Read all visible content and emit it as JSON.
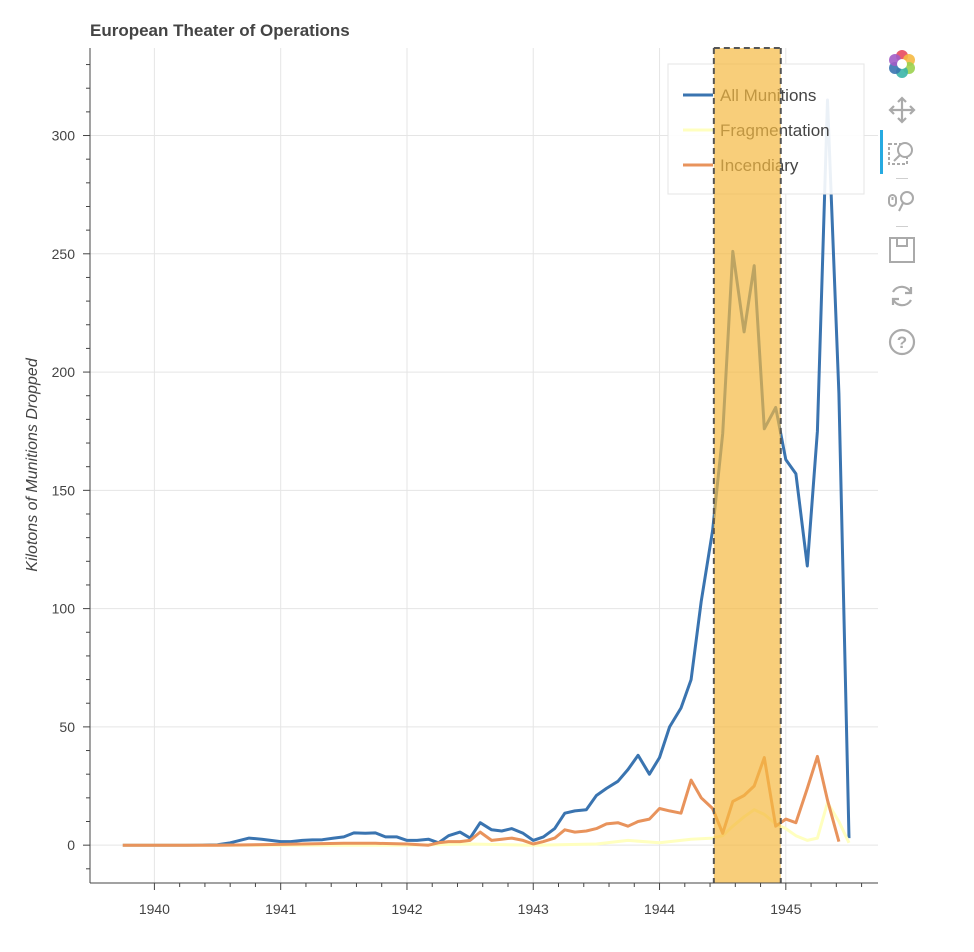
{
  "chart_data": {
    "type": "line",
    "title": "European Theater of Operations",
    "xlabel": "",
    "ylabel": "Kilotons of Munitions Dropped",
    "xlim": [
      1939.49,
      1945.73
    ],
    "ylim": [
      -16,
      337
    ],
    "x_ticks": [
      "1940",
      "1941",
      "1942",
      "1943",
      "1944",
      "1945"
    ],
    "y_ticks": [
      "0",
      "50",
      "100",
      "150",
      "200",
      "250",
      "300"
    ],
    "grid": true,
    "legend_position": "top-right",
    "highlight_band": {
      "x_start": 1944.43,
      "x_end": 1944.96,
      "color": "#f5b942"
    },
    "series": [
      {
        "name": "All Munitions",
        "color": "#3a74b0",
        "points": [
          [
            1939.75,
            0
          ],
          [
            1940.0,
            0
          ],
          [
            1940.25,
            0
          ],
          [
            1940.5,
            0.2
          ],
          [
            1940.6,
            1
          ],
          [
            1940.75,
            3
          ],
          [
            1940.85,
            2.5
          ],
          [
            1941.0,
            1.5
          ],
          [
            1941.08,
            1.5
          ],
          [
            1941.17,
            2
          ],
          [
            1941.25,
            2.2
          ],
          [
            1941.33,
            2.3
          ],
          [
            1941.42,
            3
          ],
          [
            1941.5,
            3.5
          ],
          [
            1941.58,
            5.2
          ],
          [
            1941.67,
            5
          ],
          [
            1941.75,
            5.2
          ],
          [
            1941.83,
            3.5
          ],
          [
            1941.92,
            3.5
          ],
          [
            1942.0,
            2
          ],
          [
            1942.08,
            2
          ],
          [
            1942.17,
            2.5
          ],
          [
            1942.25,
            1
          ],
          [
            1942.33,
            4
          ],
          [
            1942.42,
            5.5
          ],
          [
            1942.5,
            3
          ],
          [
            1942.58,
            9.5
          ],
          [
            1942.67,
            6.5
          ],
          [
            1942.75,
            6
          ],
          [
            1942.83,
            7
          ],
          [
            1942.92,
            5
          ],
          [
            1943.0,
            2
          ],
          [
            1943.08,
            3.5
          ],
          [
            1943.17,
            7
          ],
          [
            1943.25,
            13.5
          ],
          [
            1943.33,
            14.5
          ],
          [
            1943.42,
            15
          ],
          [
            1943.5,
            21
          ],
          [
            1943.58,
            24
          ],
          [
            1943.67,
            27
          ],
          [
            1943.75,
            32
          ],
          [
            1943.83,
            38
          ],
          [
            1943.92,
            30
          ],
          [
            1944.0,
            37
          ],
          [
            1944.08,
            50
          ],
          [
            1944.17,
            58
          ],
          [
            1944.25,
            70
          ],
          [
            1944.33,
            103
          ],
          [
            1944.42,
            133
          ],
          [
            1944.5,
            174
          ],
          [
            1944.58,
            251
          ],
          [
            1944.67,
            217
          ],
          [
            1944.75,
            245
          ],
          [
            1944.83,
            176
          ],
          [
            1944.92,
            185
          ],
          [
            1945.0,
            163
          ],
          [
            1945.08,
            157
          ],
          [
            1945.17,
            118
          ],
          [
            1945.25,
            175
          ],
          [
            1945.33,
            315
          ],
          [
            1945.42,
            191
          ],
          [
            1945.5,
            3
          ]
        ]
      },
      {
        "name": "Fragmentation",
        "color": "#ffffbf",
        "points": [
          [
            1939.75,
            0
          ],
          [
            1940.5,
            0
          ],
          [
            1941.0,
            0
          ],
          [
            1942.0,
            0
          ],
          [
            1942.5,
            0.5
          ],
          [
            1943.0,
            0
          ],
          [
            1943.5,
            0.5
          ],
          [
            1943.75,
            2
          ],
          [
            1944.0,
            1
          ],
          [
            1944.25,
            2.5
          ],
          [
            1944.42,
            3
          ],
          [
            1944.5,
            4
          ],
          [
            1944.58,
            8
          ],
          [
            1944.67,
            12
          ],
          [
            1944.75,
            15
          ],
          [
            1944.83,
            13
          ],
          [
            1944.92,
            9
          ],
          [
            1945.0,
            7
          ],
          [
            1945.08,
            4
          ],
          [
            1945.17,
            2
          ],
          [
            1945.25,
            3
          ],
          [
            1945.33,
            18
          ],
          [
            1945.42,
            10
          ],
          [
            1945.5,
            1
          ]
        ]
      },
      {
        "name": "Incendiary",
        "color": "#e8935c",
        "points": [
          [
            1939.75,
            0
          ],
          [
            1940.0,
            0
          ],
          [
            1940.5,
            0
          ],
          [
            1941.0,
            0.3
          ],
          [
            1941.5,
            0.8
          ],
          [
            1941.75,
            0.8
          ],
          [
            1942.0,
            0.5
          ],
          [
            1942.17,
            0
          ],
          [
            1942.25,
            1
          ],
          [
            1942.33,
            1.5
          ],
          [
            1942.42,
            1.5
          ],
          [
            1942.5,
            2
          ],
          [
            1942.58,
            5.5
          ],
          [
            1942.67,
            2
          ],
          [
            1942.75,
            2.5
          ],
          [
            1942.83,
            3
          ],
          [
            1942.92,
            2
          ],
          [
            1943.0,
            0.5
          ],
          [
            1943.08,
            1.5
          ],
          [
            1943.17,
            3
          ],
          [
            1943.25,
            6.5
          ],
          [
            1943.33,
            5.5
          ],
          [
            1943.42,
            6
          ],
          [
            1943.5,
            7
          ],
          [
            1943.58,
            9
          ],
          [
            1943.67,
            9.5
          ],
          [
            1943.75,
            8
          ],
          [
            1943.83,
            10
          ],
          [
            1943.92,
            11
          ],
          [
            1944.0,
            15.5
          ],
          [
            1944.08,
            14.5
          ],
          [
            1944.17,
            13.5
          ],
          [
            1944.25,
            27.5
          ],
          [
            1944.33,
            20
          ],
          [
            1944.42,
            15.5
          ],
          [
            1944.5,
            5
          ],
          [
            1944.58,
            18.5
          ],
          [
            1944.67,
            21
          ],
          [
            1944.75,
            25
          ],
          [
            1944.83,
            37
          ],
          [
            1944.92,
            8
          ],
          [
            1945.0,
            11
          ],
          [
            1945.08,
            9.5
          ],
          [
            1945.17,
            24
          ],
          [
            1945.25,
            37.5
          ],
          [
            1945.33,
            19
          ],
          [
            1945.42,
            1.5
          ]
        ]
      }
    ]
  },
  "toolbar": {
    "tools": [
      {
        "name": "bokeh-logo-icon",
        "tooltip": ""
      },
      {
        "name": "pan-icon",
        "tooltip": ""
      },
      {
        "name": "box-zoom-icon",
        "tooltip": ""
      },
      {
        "name": "wheel-zoom-icon",
        "tooltip": ""
      },
      {
        "name": "save-icon",
        "tooltip": ""
      },
      {
        "name": "reset-icon",
        "tooltip": ""
      },
      {
        "name": "help-icon",
        "tooltip": ""
      }
    ]
  }
}
